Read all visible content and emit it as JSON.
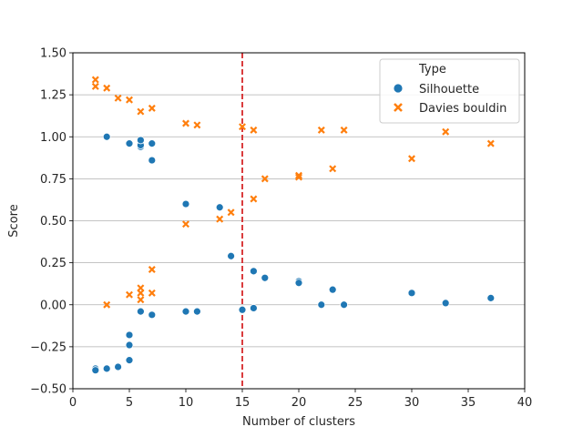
{
  "chart_data": {
    "type": "scatter",
    "title": "",
    "xlabel": "Number of clusters",
    "ylabel": "Score",
    "xlim": [
      0,
      40
    ],
    "ylim": [
      -0.5,
      1.5
    ],
    "xticks": [
      "0",
      "5",
      "10",
      "15",
      "20",
      "25",
      "30",
      "35",
      "40"
    ],
    "yticks": [
      "−0.50",
      "−0.25",
      "0.00",
      "0.25",
      "0.50",
      "0.75",
      "1.00",
      "1.25",
      "1.50"
    ],
    "grid": "horizontal",
    "legend_position": "top-right",
    "legend_title": "Type",
    "reference_line": {
      "x": 15,
      "color": "#d62728",
      "style": "dashed"
    },
    "series": [
      {
        "name": "Silhouette",
        "marker": "circle",
        "color": "#1f77b4",
        "points": [
          [
            2,
            -0.38
          ],
          [
            2,
            -0.39
          ],
          [
            3,
            -0.38
          ],
          [
            3,
            1.0
          ],
          [
            4,
            -0.37
          ],
          [
            5,
            -0.18
          ],
          [
            5,
            -0.24
          ],
          [
            5,
            -0.33
          ],
          [
            5,
            0.96
          ],
          [
            6,
            -0.04
          ],
          [
            6,
            0.94
          ],
          [
            6,
            0.95
          ],
          [
            6,
            0.98
          ],
          [
            7,
            -0.06
          ],
          [
            7,
            0.96
          ],
          [
            7,
            0.86
          ],
          [
            10,
            0.6
          ],
          [
            10,
            -0.04
          ],
          [
            11,
            -0.04
          ],
          [
            13,
            0.58
          ],
          [
            14,
            0.29
          ],
          [
            15,
            -0.03
          ],
          [
            16,
            0.2
          ],
          [
            16,
            -0.02
          ],
          [
            17,
            0.16
          ],
          [
            20,
            0.14
          ],
          [
            20,
            0.13
          ],
          [
            22,
            0.0
          ],
          [
            23,
            0.09
          ],
          [
            24,
            0.0
          ],
          [
            30,
            0.07
          ],
          [
            33,
            0.01
          ],
          [
            37,
            0.04
          ]
        ]
      },
      {
        "name": "Davies bouldin",
        "marker": "x",
        "color": "#ff7f0e",
        "points": [
          [
            2,
            1.34
          ],
          [
            2,
            1.3
          ],
          [
            3,
            1.29
          ],
          [
            3,
            0.0
          ],
          [
            4,
            1.23
          ],
          [
            5,
            1.22
          ],
          [
            5,
            0.06
          ],
          [
            6,
            1.15
          ],
          [
            6,
            0.1
          ],
          [
            6,
            0.07
          ],
          [
            6,
            0.03
          ],
          [
            7,
            1.17
          ],
          [
            7,
            0.21
          ],
          [
            7,
            0.07
          ],
          [
            10,
            1.08
          ],
          [
            10,
            0.48
          ],
          [
            11,
            1.07
          ],
          [
            13,
            0.51
          ],
          [
            14,
            0.55
          ],
          [
            15,
            1.06
          ],
          [
            16,
            1.04
          ],
          [
            16,
            0.63
          ],
          [
            17,
            0.75
          ],
          [
            20,
            0.77
          ],
          [
            20,
            0.76
          ],
          [
            22,
            1.04
          ],
          [
            23,
            0.81
          ],
          [
            24,
            1.04
          ],
          [
            30,
            0.87
          ],
          [
            33,
            1.03
          ],
          [
            37,
            0.96
          ]
        ]
      }
    ]
  }
}
